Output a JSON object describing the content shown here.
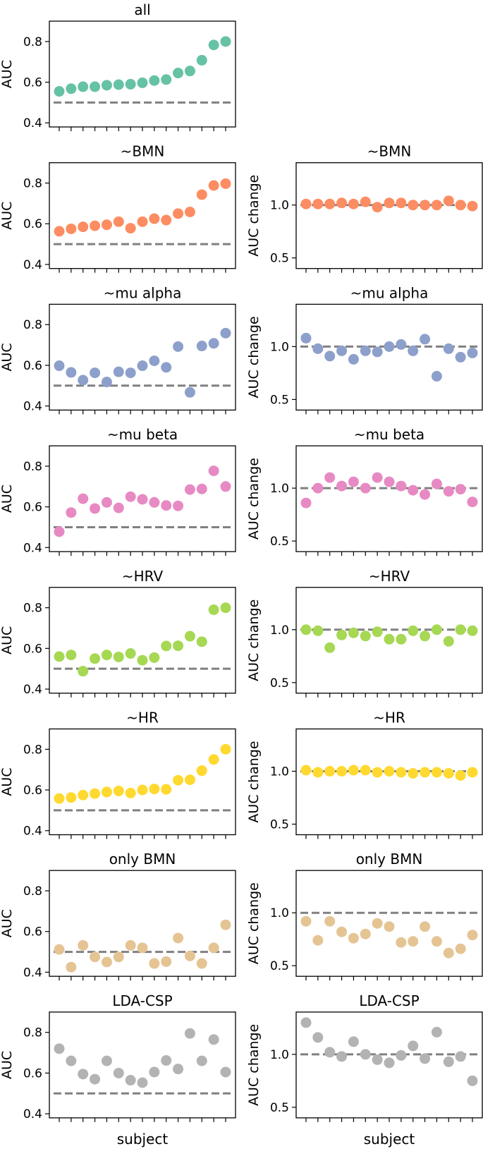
{
  "chart_data": [
    {
      "type": "scatter",
      "panel": "auc",
      "title": "all",
      "ylabel": "AUC",
      "xlabel": "",
      "ylim": [
        0.38,
        0.9
      ],
      "yticks": [
        0.4,
        0.6,
        0.8
      ],
      "ytick_labels": [
        "0.4",
        "0.6",
        "0.8"
      ],
      "color": "#66c2a5",
      "chance": 0.5,
      "values": [
        0.555,
        0.568,
        0.578,
        0.578,
        0.585,
        0.588,
        0.59,
        0.597,
        0.608,
        0.613,
        0.645,
        0.655,
        0.708,
        0.783,
        0.8
      ]
    },
    {
      "type": "scatter",
      "panel": "auc",
      "title": "~BMN",
      "ylabel": "AUC",
      "xlabel": "",
      "ylim": [
        0.38,
        0.9
      ],
      "yticks": [
        0.4,
        0.6,
        0.8
      ],
      "ytick_labels": [
        "0.4",
        "0.6",
        "0.8"
      ],
      "color": "#fc8d62",
      "chance": 0.5,
      "values": [
        0.563,
        0.575,
        0.585,
        0.59,
        0.595,
        0.61,
        0.578,
        0.61,
        0.625,
        0.618,
        0.65,
        0.658,
        0.743,
        0.788,
        0.797
      ]
    },
    {
      "type": "scatter",
      "panel": "change",
      "title": "~BMN",
      "ylabel": "AUC change",
      "xlabel": "",
      "ylim": [
        0.4,
        1.4
      ],
      "yticks": [
        0.5,
        1.0
      ],
      "ytick_labels": [
        "0.5",
        "1.0"
      ],
      "color": "#fc8d62",
      "chance": 1.0,
      "values": [
        1.01,
        1.01,
        1.01,
        1.02,
        1.01,
        1.03,
        0.98,
        1.02,
        1.02,
        1.0,
        1.0,
        1.0,
        1.04,
        1.0,
        0.99
      ]
    },
    {
      "type": "scatter",
      "panel": "auc",
      "title": "~mu alpha",
      "ylabel": "AUC",
      "xlabel": "",
      "ylim": [
        0.38,
        0.9
      ],
      "yticks": [
        0.4,
        0.6,
        0.8
      ],
      "ytick_labels": [
        "0.4",
        "0.6",
        "0.8"
      ],
      "color": "#8da0cb",
      "chance": 0.5,
      "values": [
        0.598,
        0.565,
        0.527,
        0.563,
        0.518,
        0.568,
        0.563,
        0.598,
        0.622,
        0.59,
        0.692,
        0.467,
        0.695,
        0.708,
        0.758
      ]
    },
    {
      "type": "scatter",
      "panel": "change",
      "title": "~mu alpha",
      "ylabel": "AUC change",
      "xlabel": "",
      "ylim": [
        0.4,
        1.4
      ],
      "yticks": [
        0.5,
        1.0
      ],
      "ytick_labels": [
        "0.5",
        "1.0"
      ],
      "color": "#8da0cb",
      "chance": 1.0,
      "values": [
        1.08,
        0.98,
        0.91,
        0.96,
        0.88,
        0.96,
        0.95,
        1.0,
        1.02,
        0.96,
        1.07,
        0.72,
        0.98,
        0.9,
        0.94
      ]
    },
    {
      "type": "scatter",
      "panel": "auc",
      "title": "~mu beta",
      "ylabel": "AUC",
      "xlabel": "",
      "ylim": [
        0.38,
        0.9
      ],
      "yticks": [
        0.4,
        0.6,
        0.8
      ],
      "ytick_labels": [
        "0.4",
        "0.6",
        "0.8"
      ],
      "color": "#e78ac3",
      "chance": 0.5,
      "values": [
        0.478,
        0.572,
        0.64,
        0.592,
        0.622,
        0.595,
        0.65,
        0.637,
        0.622,
        0.607,
        0.605,
        0.685,
        0.688,
        0.777,
        0.7
      ]
    },
    {
      "type": "scatter",
      "panel": "change",
      "title": "~mu beta",
      "ylabel": "AUC change",
      "xlabel": "",
      "ylim": [
        0.4,
        1.4
      ],
      "yticks": [
        0.5,
        1.0
      ],
      "ytick_labels": [
        "0.5",
        "1.0"
      ],
      "color": "#e78ac3",
      "chance": 1.0,
      "values": [
        0.86,
        1.0,
        1.1,
        1.02,
        1.06,
        1.0,
        1.1,
        1.06,
        1.02,
        0.98,
        0.94,
        1.04,
        0.97,
        0.99,
        0.87
      ]
    },
    {
      "type": "scatter",
      "panel": "auc",
      "title": "~HRV",
      "ylabel": "AUC",
      "xlabel": "",
      "ylim": [
        0.38,
        0.9
      ],
      "yticks": [
        0.4,
        0.6,
        0.8
      ],
      "ytick_labels": [
        "0.4",
        "0.6",
        "0.8"
      ],
      "color": "#a6d854",
      "chance": 0.5,
      "values": [
        0.56,
        0.568,
        0.488,
        0.55,
        0.568,
        0.558,
        0.575,
        0.542,
        0.555,
        0.612,
        0.613,
        0.66,
        0.633,
        0.79,
        0.8
      ]
    },
    {
      "type": "scatter",
      "panel": "change",
      "title": "~HRV",
      "ylabel": "AUC change",
      "xlabel": "",
      "ylim": [
        0.4,
        1.4
      ],
      "yticks": [
        0.5,
        1.0
      ],
      "ytick_labels": [
        "0.5",
        "1.0"
      ],
      "color": "#a6d854",
      "chance": 1.0,
      "values": [
        1.0,
        0.99,
        0.83,
        0.95,
        0.97,
        0.94,
        0.98,
        0.91,
        0.91,
        0.99,
        0.94,
        1.0,
        0.89,
        1.0,
        0.99
      ]
    },
    {
      "type": "scatter",
      "panel": "auc",
      "title": "~HR",
      "ylabel": "AUC",
      "xlabel": "",
      "ylim": [
        0.38,
        0.9
      ],
      "yticks": [
        0.4,
        0.6,
        0.8
      ],
      "ytick_labels": [
        "0.4",
        "0.6",
        "0.8"
      ],
      "color": "#ffd92f",
      "chance": 0.5,
      "values": [
        0.558,
        0.563,
        0.575,
        0.582,
        0.59,
        0.595,
        0.585,
        0.6,
        0.605,
        0.603,
        0.648,
        0.65,
        0.695,
        0.75,
        0.8
      ]
    },
    {
      "type": "scatter",
      "panel": "change",
      "title": "~HR",
      "ylabel": "AUC change",
      "xlabel": "",
      "ylim": [
        0.4,
        1.4
      ],
      "yticks": [
        0.5,
        1.0
      ],
      "ytick_labels": [
        "0.5",
        "1.0"
      ],
      "color": "#ffd92f",
      "chance": 1.0,
      "values": [
        1.01,
        0.99,
        1.0,
        1.0,
        1.01,
        1.01,
        0.99,
        1.0,
        0.99,
        0.98,
        0.99,
        0.99,
        0.98,
        0.96,
        0.99
      ]
    },
    {
      "type": "scatter",
      "panel": "auc",
      "title": "only BMN",
      "ylabel": "AUC",
      "xlabel": "",
      "ylim": [
        0.38,
        0.9
      ],
      "yticks": [
        0.4,
        0.6,
        0.8
      ],
      "ytick_labels": [
        "0.4",
        "0.6",
        "0.8"
      ],
      "color": "#e5c494",
      "chance": 0.5,
      "values": [
        0.512,
        0.425,
        0.532,
        0.475,
        0.45,
        0.475,
        0.532,
        0.52,
        0.443,
        0.452,
        0.568,
        0.48,
        0.443,
        0.52,
        0.633
      ]
    },
    {
      "type": "scatter",
      "panel": "change",
      "title": "only BMN",
      "ylabel": "AUC change",
      "xlabel": "",
      "ylim": [
        0.4,
        1.4
      ],
      "yticks": [
        0.5,
        1.0
      ],
      "ytick_labels": [
        "0.5",
        "1.0"
      ],
      "color": "#e5c494",
      "chance": 1.0,
      "values": [
        0.92,
        0.74,
        0.92,
        0.82,
        0.76,
        0.8,
        0.9,
        0.87,
        0.72,
        0.73,
        0.87,
        0.73,
        0.62,
        0.66,
        0.79
      ]
    },
    {
      "type": "scatter",
      "panel": "auc",
      "title": "LDA-CSP",
      "ylabel": "AUC",
      "xlabel": "subject",
      "ylim": [
        0.38,
        0.9
      ],
      "yticks": [
        0.4,
        0.6,
        0.8
      ],
      "ytick_labels": [
        "0.4",
        "0.6",
        "0.8"
      ],
      "color": "#b3b3b3",
      "chance": 0.5,
      "values": [
        0.72,
        0.66,
        0.595,
        0.57,
        0.66,
        0.6,
        0.565,
        0.553,
        0.605,
        0.662,
        0.62,
        0.795,
        0.66,
        0.765,
        0.605
      ]
    },
    {
      "type": "scatter",
      "panel": "change",
      "title": "LDA-CSP",
      "ylabel": "AUC change",
      "xlabel": "subject",
      "ylim": [
        0.4,
        1.4
      ],
      "yticks": [
        0.5,
        1.0
      ],
      "ytick_labels": [
        "0.5",
        "1.0"
      ],
      "color": "#b3b3b3",
      "chance": 1.0,
      "values": [
        1.3,
        1.16,
        1.02,
        0.98,
        1.12,
        1.0,
        0.95,
        0.92,
        0.99,
        1.08,
        0.96,
        1.21,
        0.93,
        0.98,
        0.75
      ]
    }
  ]
}
